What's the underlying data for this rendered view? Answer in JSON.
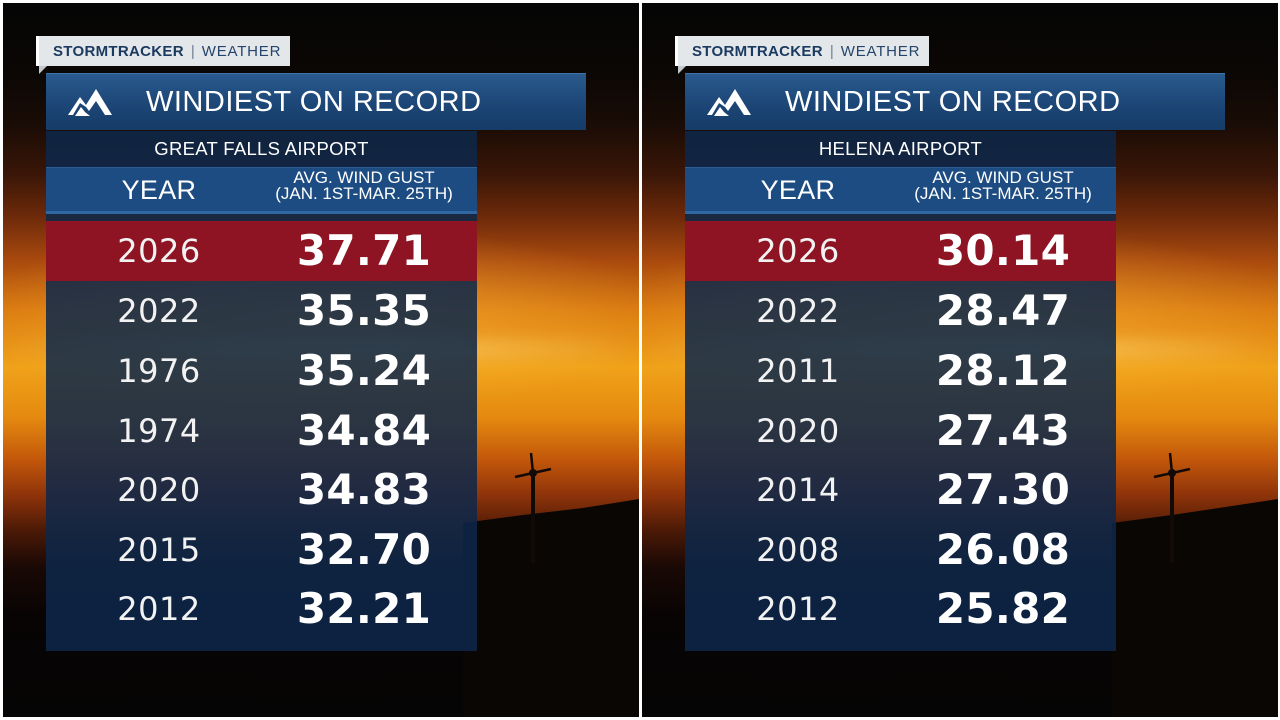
{
  "brand": "STORMTRACKER",
  "brand_sep": "|",
  "section": "WEATHER",
  "title": "WINDIEST ON RECORD",
  "columns": {
    "year": "YEAR",
    "gust_line1": "AVG. WIND GUST",
    "gust_line2": "(JAN. 1ST-MAR. 25TH)"
  },
  "colors": {
    "title_bar": "#1c4676",
    "table_bg": "#0d284a",
    "highlight_row": "#8e1423",
    "tag_bg": "#e4e7ea"
  },
  "panels": [
    {
      "airport": "GREAT FALLS AIRPORT",
      "rows": [
        {
          "year": "2026",
          "value": "37.71",
          "highlight": true
        },
        {
          "year": "2022",
          "value": "35.35"
        },
        {
          "year": "1976",
          "value": "35.24"
        },
        {
          "year": "1974",
          "value": "34.84"
        },
        {
          "year": "2020",
          "value": "34.83"
        },
        {
          "year": "2015",
          "value": "32.70"
        },
        {
          "year": "2012",
          "value": "32.21"
        }
      ]
    },
    {
      "airport": "HELENA AIRPORT",
      "rows": [
        {
          "year": "2026",
          "value": "30.14",
          "highlight": true
        },
        {
          "year": "2022",
          "value": "28.47"
        },
        {
          "year": "2011",
          "value": "28.12"
        },
        {
          "year": "2020",
          "value": "27.43"
        },
        {
          "year": "2014",
          "value": "27.30"
        },
        {
          "year": "2008",
          "value": "26.08"
        },
        {
          "year": "2012",
          "value": "25.82"
        }
      ]
    }
  ]
}
